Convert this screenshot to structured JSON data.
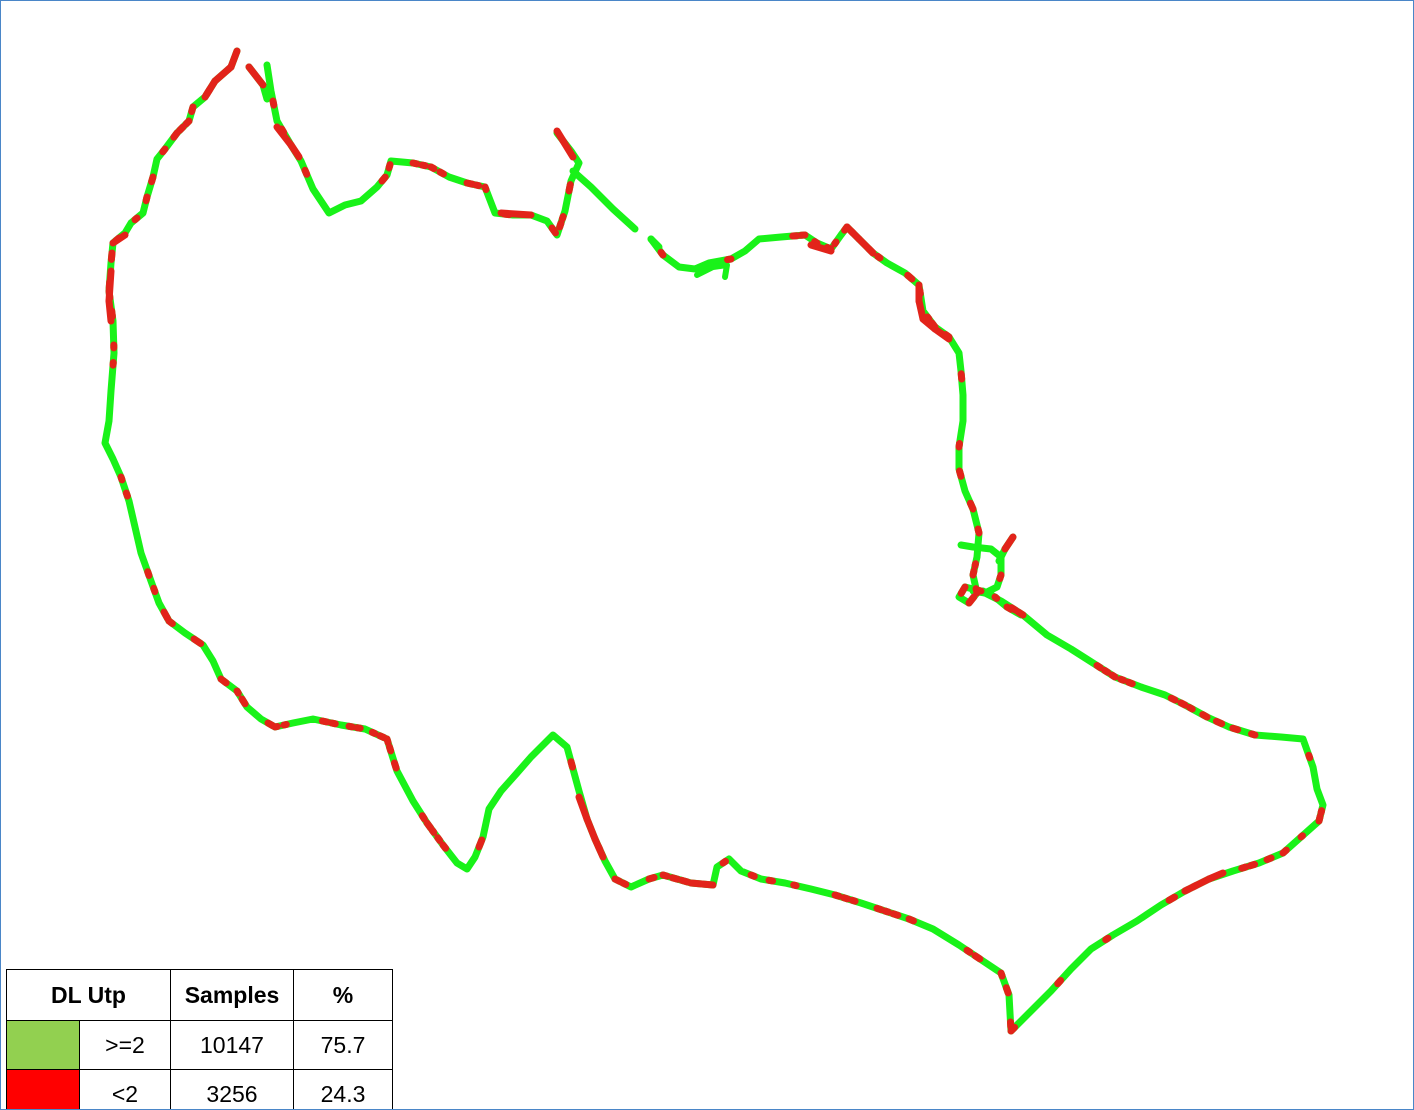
{
  "legend": {
    "header": {
      "metric": "DL Utp",
      "samples": "Samples",
      "percent": "%"
    },
    "rows": [
      {
        "threshold": ">=2",
        "samples": "10147",
        "percent": "75.7",
        "color": "#92d050"
      },
      {
        "threshold": "<2",
        "samples": "3256",
        "percent": "24.3",
        "color": "#ff0000"
      }
    ]
  },
  "colors": {
    "good": "#19f219",
    "bad": "#e2231a",
    "frame": "#4a86c8"
  }
}
